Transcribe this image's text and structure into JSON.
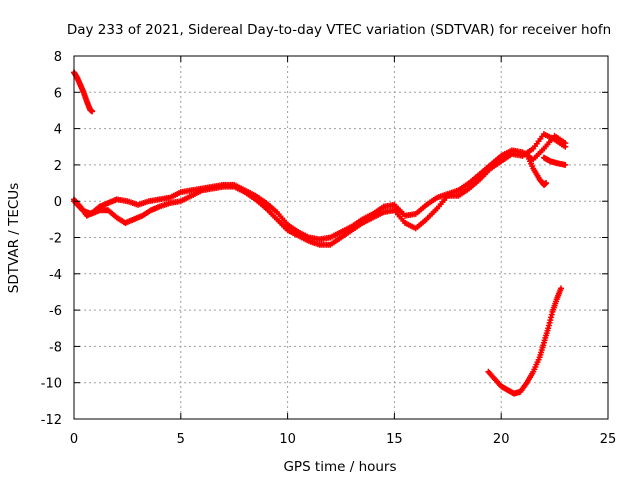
{
  "chart_data": {
    "type": "scatter",
    "title": "Day 233 of 2021, Sidereal Day-to-day VTEC variation (SDTVAR) for receiver hofn",
    "xlabel": "GPS time / hours",
    "ylabel": "SDTVAR / TECUs",
    "xlim": [
      0,
      25
    ],
    "ylim": [
      -12,
      8
    ],
    "xticks": [
      0,
      5,
      10,
      15,
      20,
      25
    ],
    "yticks": [
      -12,
      -10,
      -8,
      -6,
      -4,
      -2,
      0,
      2,
      4,
      6,
      8
    ],
    "grid": true,
    "legend": "none",
    "marker": "plus",
    "series": [
      {
        "name": "track-early-high",
        "color": "#ff0000",
        "points": [
          [
            0.0,
            7.1
          ],
          [
            0.15,
            6.8
          ],
          [
            0.3,
            6.4
          ],
          [
            0.45,
            6.0
          ],
          [
            0.6,
            5.5
          ],
          [
            0.75,
            5.05
          ],
          [
            0.85,
            4.95
          ]
        ]
      },
      {
        "name": "track-main-a",
        "color": "#ff0000",
        "points": [
          [
            0.0,
            0.1
          ],
          [
            0.3,
            -0.3
          ],
          [
            0.6,
            -0.8
          ],
          [
            0.9,
            -0.6
          ],
          [
            1.2,
            -0.3
          ],
          [
            1.6,
            -0.1
          ],
          [
            2.0,
            0.1
          ],
          [
            2.5,
            0.0
          ],
          [
            3.0,
            -0.2
          ],
          [
            3.5,
            0.0
          ],
          [
            4.0,
            0.1
          ],
          [
            4.5,
            0.2
          ],
          [
            5.0,
            0.5
          ],
          [
            5.5,
            0.6
          ],
          [
            6.0,
            0.7
          ],
          [
            6.5,
            0.8
          ],
          [
            7.0,
            0.9
          ],
          [
            7.5,
            0.9
          ],
          [
            8.0,
            0.6
          ],
          [
            8.5,
            0.3
          ],
          [
            9.0,
            -0.1
          ],
          [
            9.5,
            -0.6
          ],
          [
            10.0,
            -1.3
          ],
          [
            10.5,
            -1.7
          ],
          [
            11.0,
            -2.0
          ],
          [
            11.5,
            -2.1
          ],
          [
            12.0,
            -2.0
          ],
          [
            12.5,
            -1.7
          ],
          [
            13.0,
            -1.4
          ],
          [
            13.5,
            -1.0
          ],
          [
            14.0,
            -0.7
          ],
          [
            14.5,
            -0.3
          ],
          [
            15.0,
            -0.2
          ],
          [
            15.5,
            -0.8
          ],
          [
            16.0,
            -0.7
          ],
          [
            16.5,
            -0.2
          ],
          [
            17.0,
            0.2
          ],
          [
            17.5,
            0.4
          ],
          [
            18.0,
            0.6
          ],
          [
            18.5,
            1.0
          ],
          [
            19.0,
            1.5
          ],
          [
            19.5,
            2.0
          ],
          [
            20.0,
            2.5
          ],
          [
            20.5,
            2.8
          ],
          [
            21.0,
            2.7
          ],
          [
            21.5,
            2.3
          ],
          [
            22.0,
            2.9
          ],
          [
            22.5,
            3.6
          ],
          [
            23.0,
            3.2
          ]
        ]
      },
      {
        "name": "track-main-b",
        "color": "#ff0000",
        "points": [
          [
            0.0,
            0.0
          ],
          [
            0.4,
            -0.5
          ],
          [
            0.8,
            -0.7
          ],
          [
            1.2,
            -0.5
          ],
          [
            1.6,
            -0.5
          ],
          [
            2.0,
            -0.9
          ],
          [
            2.4,
            -1.2
          ],
          [
            2.8,
            -1.0
          ],
          [
            3.2,
            -0.8
          ],
          [
            3.6,
            -0.5
          ],
          [
            4.0,
            -0.3
          ],
          [
            4.5,
            -0.1
          ],
          [
            5.0,
            0.0
          ],
          [
            5.5,
            0.3
          ],
          [
            6.0,
            0.6
          ],
          [
            6.5,
            0.7
          ],
          [
            7.0,
            0.8
          ],
          [
            7.5,
            0.8
          ],
          [
            8.0,
            0.5
          ],
          [
            8.5,
            0.1
          ],
          [
            9.0,
            -0.4
          ],
          [
            9.5,
            -1.0
          ],
          [
            10.0,
            -1.6
          ],
          [
            10.5,
            -1.9
          ],
          [
            11.0,
            -2.2
          ],
          [
            11.5,
            -2.4
          ],
          [
            12.0,
            -2.4
          ],
          [
            12.5,
            -2.0
          ],
          [
            13.0,
            -1.6
          ],
          [
            13.5,
            -1.2
          ],
          [
            14.0,
            -0.9
          ],
          [
            14.5,
            -0.6
          ],
          [
            15.0,
            -0.5
          ],
          [
            15.5,
            -1.2
          ],
          [
            16.0,
            -1.5
          ],
          [
            16.5,
            -1.0
          ],
          [
            17.0,
            -0.4
          ],
          [
            17.5,
            0.3
          ],
          [
            18.0,
            0.3
          ],
          [
            18.5,
            0.7
          ],
          [
            19.0,
            1.2
          ],
          [
            19.5,
            1.8
          ],
          [
            20.0,
            2.2
          ],
          [
            20.5,
            2.6
          ],
          [
            21.0,
            2.5
          ],
          [
            21.5,
            2.9
          ],
          [
            22.0,
            3.7
          ],
          [
            22.5,
            3.4
          ],
          [
            23.0,
            3.0
          ]
        ]
      },
      {
        "name": "track-branch-late",
        "color": "#ff0000",
        "points": [
          [
            21.2,
            2.6
          ],
          [
            21.5,
            1.8
          ],
          [
            21.8,
            1.2
          ],
          [
            22.0,
            0.9
          ],
          [
            22.1,
            1.0
          ]
        ]
      },
      {
        "name": "track-branch-late-2",
        "color": "#ff0000",
        "points": [
          [
            22.0,
            2.4
          ],
          [
            22.3,
            2.2
          ],
          [
            22.6,
            2.1
          ],
          [
            23.0,
            2.0
          ]
        ]
      },
      {
        "name": "track-late-low",
        "color": "#ff0000",
        "points": [
          [
            19.4,
            -9.4
          ],
          [
            19.7,
            -9.8
          ],
          [
            20.0,
            -10.2
          ],
          [
            20.3,
            -10.4
          ],
          [
            20.6,
            -10.6
          ],
          [
            20.9,
            -10.5
          ],
          [
            21.2,
            -10.0
          ],
          [
            21.5,
            -9.4
          ],
          [
            21.8,
            -8.6
          ],
          [
            22.0,
            -7.8
          ],
          [
            22.2,
            -7.0
          ],
          [
            22.4,
            -6.1
          ],
          [
            22.6,
            -5.4
          ],
          [
            22.8,
            -4.8
          ]
        ]
      }
    ]
  }
}
